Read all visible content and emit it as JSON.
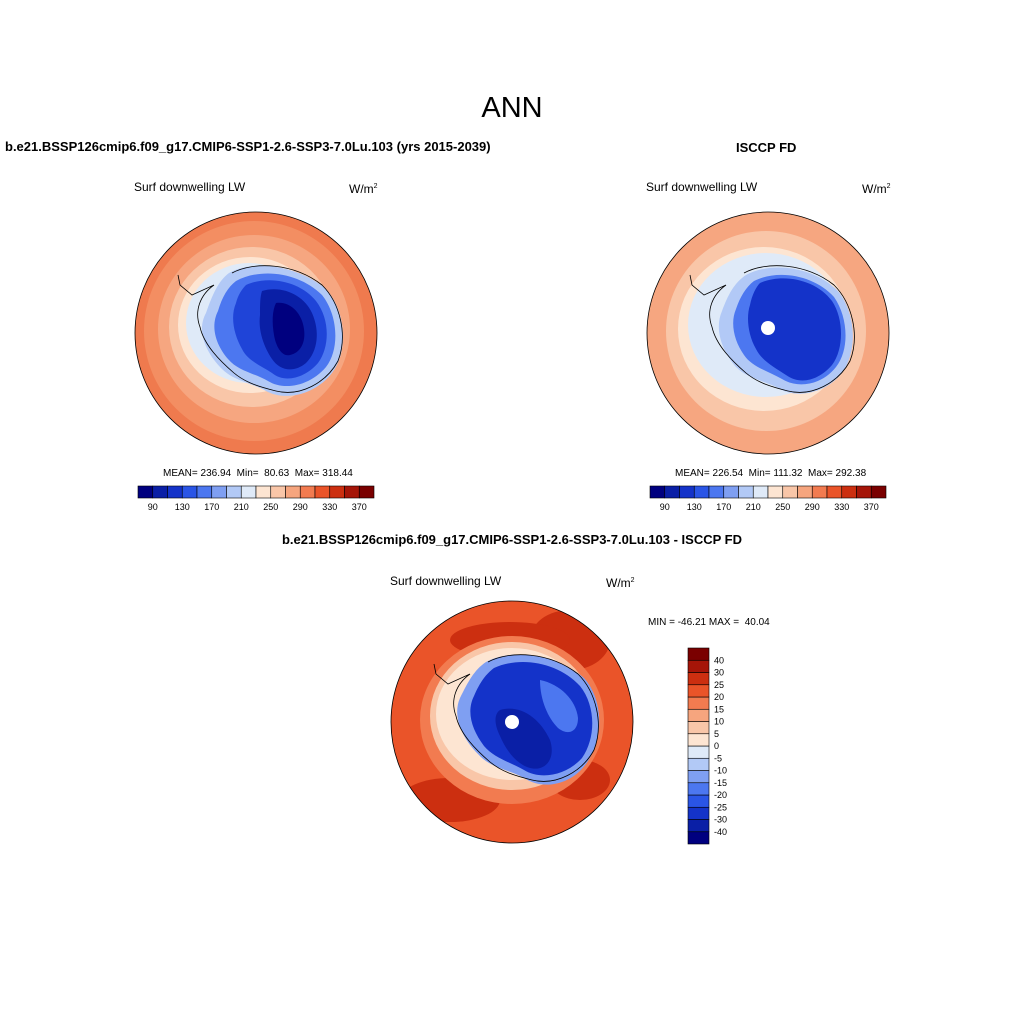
{
  "page": {
    "title": "ANN"
  },
  "panels": {
    "model": {
      "title": "b.e21.BSSP126cmip6.f09_g17.CMIP6-SSP1-2.6-SSP3-7.0Lu.103 (yrs 2015-2039)",
      "variable": "Surf downwelling LW",
      "units": "W/m",
      "units_exp": "2",
      "stats": "MEAN= 236.94  Min=  80.63  Max= 318.44"
    },
    "obs": {
      "title": "ISCCP FD",
      "variable": "Surf downwelling LW",
      "units": "W/m",
      "units_exp": "2",
      "stats": "MEAN= 226.54  Min= 111.32  Max= 292.38"
    },
    "diff": {
      "title": "b.e21.BSSP126cmip6.f09_g17.CMIP6-SSP1-2.6-SSP3-7.0Lu.103 - ISCCP FD",
      "variable": "Surf downwelling LW",
      "units": "W/m",
      "units_exp": "2",
      "minmax": "MIN = -46.21 MAX =  40.04"
    }
  },
  "colorbars": {
    "abs": {
      "colors": [
        "#00007f",
        "#0a1fa6",
        "#1433c9",
        "#2a55e6",
        "#4c77f0",
        "#7f9ff2",
        "#b2c9f6",
        "#dfeaf8",
        "#fde5d2",
        "#f9c6a8",
        "#f6a57e",
        "#f27b50",
        "#ea5429",
        "#cc2f10",
        "#a51508",
        "#7a0000"
      ],
      "labels": [
        "90",
        "130",
        "170",
        "210",
        "250",
        "290",
        "330",
        "370"
      ]
    },
    "diff": {
      "colors": [
        "#00007f",
        "#0a1fa6",
        "#1433c9",
        "#2a55e6",
        "#4c77f0",
        "#7f9ff2",
        "#b2c9f6",
        "#dfeaf8",
        "#fde5d2",
        "#f9c6a8",
        "#f6a57e",
        "#f27b50",
        "#ea5429",
        "#cc2f10",
        "#a51508",
        "#7a0000"
      ],
      "labels": [
        "-40",
        "-30",
        "-25",
        "-20",
        "-15",
        "-10",
        "-5",
        "0",
        "5",
        "10",
        "15",
        "20",
        "25",
        "30",
        "40"
      ]
    }
  }
}
